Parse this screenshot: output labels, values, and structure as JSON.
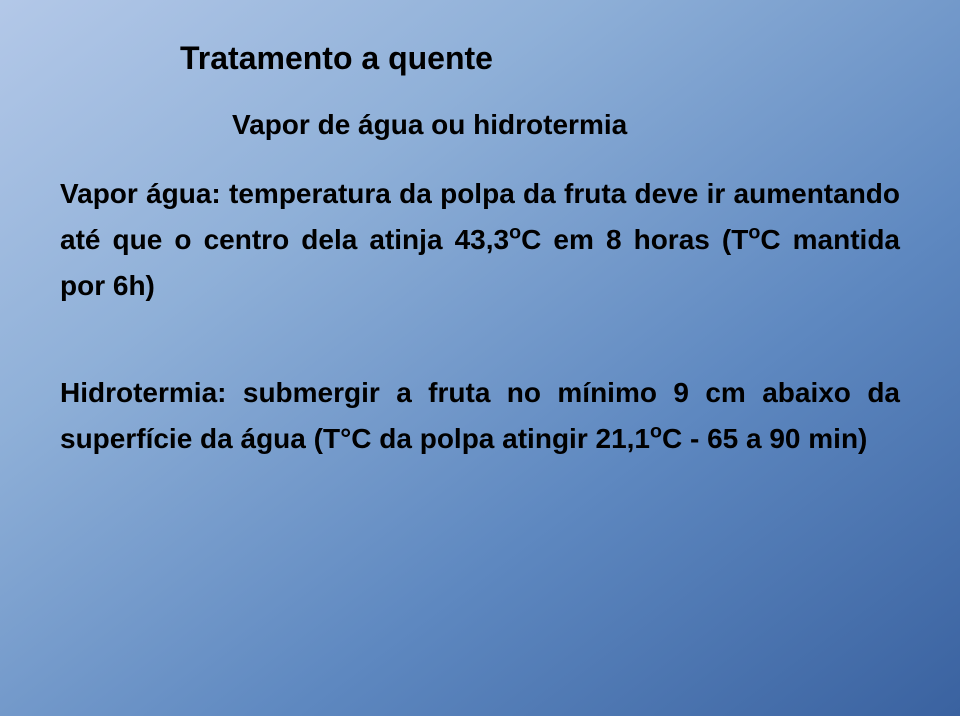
{
  "slide": {
    "title": "Tratamento a quente",
    "subtitle": "Vapor de água ou hidrotermia",
    "paragraph1_html": "Vapor água: temperatura da polpa da fruta deve ir aumentando até que o centro dela atinja 43,3<sup>o</sup>C em 8 horas (T<sup>o</sup>C mantida por 6h)",
    "paragraph2_html": "Hidrotermia: submergir a fruta no mínimo 9 cm abaixo da superfície da água (T°C da polpa atingir 21,1<sup>o</sup>C  - 65 a 90 min)",
    "background_gradient": {
      "from": "#b3c8e8",
      "mid1": "#8fb0d8",
      "mid2": "#5e88c0",
      "to": "#3a62a0"
    },
    "text_color": "#000000",
    "title_fontsize": 32,
    "body_fontsize": 28,
    "font_weight": "bold",
    "font_family": "Arial"
  }
}
